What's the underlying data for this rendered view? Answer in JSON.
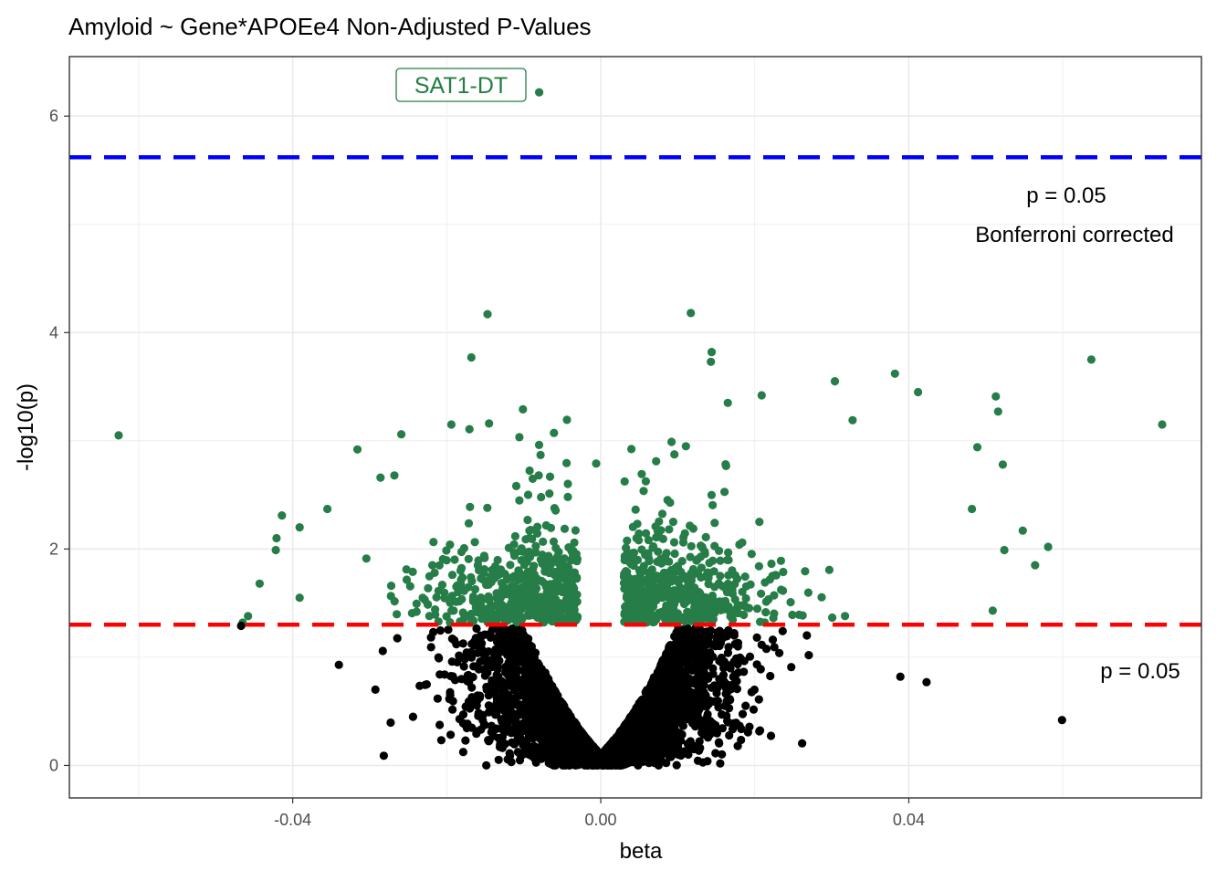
{
  "chart_data": {
    "type": "scatter",
    "title": "Amyloid ~ Gene*APOEe4 Non-Adjusted P-Values",
    "xlabel": "beta",
    "ylabel": "-log10(p)",
    "xlim": [
      -0.069,
      0.078
    ],
    "ylim": [
      -0.3,
      6.55
    ],
    "x_ticks": [
      -0.04,
      0.0,
      0.04
    ],
    "x_tick_labels": [
      "-0.04",
      "0.00",
      "0.04"
    ],
    "y_ticks": [
      0,
      2,
      4,
      6
    ],
    "y_tick_labels": [
      "0",
      "2",
      "4",
      "6"
    ],
    "grid": true,
    "colors": {
      "significant": "#267d47",
      "not_significant": "#000000",
      "bonferroni_line": "#0000ff",
      "nominal_line": "#ff0000",
      "label": "#267d47"
    },
    "thresholds": [
      {
        "name": "bonferroni",
        "y": 5.62,
        "color": "#0000ff",
        "annotation": [
          "p = 0.05",
          "Bonferroni corrected"
        ]
      },
      {
        "name": "nominal",
        "y": 1.301,
        "color": "#ff0000",
        "annotation": [
          "p = 0.05"
        ]
      }
    ],
    "labeled_points": [
      {
        "label": "SAT1-DT",
        "x": -0.008,
        "y": 6.22
      }
    ],
    "notable_points": [
      {
        "x": -0.008,
        "y": 6.22,
        "group": "significant"
      },
      {
        "x": -0.0626,
        "y": 3.05,
        "group": "significant"
      },
      {
        "x": -0.0147,
        "y": 4.17,
        "group": "significant"
      },
      {
        "x": 0.0117,
        "y": 4.18,
        "group": "significant"
      },
      {
        "x": -0.0168,
        "y": 3.77,
        "group": "significant"
      },
      {
        "x": 0.0144,
        "y": 3.82,
        "group": "significant"
      },
      {
        "x": 0.0143,
        "y": 3.73,
        "group": "significant"
      },
      {
        "x": 0.0637,
        "y": 3.75,
        "group": "significant"
      },
      {
        "x": 0.0729,
        "y": 3.15,
        "group": "significant"
      },
      {
        "x": 0.0382,
        "y": 3.62,
        "group": "significant"
      },
      {
        "x": 0.0304,
        "y": 3.55,
        "group": "significant"
      },
      {
        "x": 0.0412,
        "y": 3.45,
        "group": "significant"
      },
      {
        "x": 0.0513,
        "y": 3.41,
        "group": "significant"
      },
      {
        "x": 0.0516,
        "y": 3.27,
        "group": "significant"
      },
      {
        "x": -0.0101,
        "y": 3.29,
        "group": "significant"
      },
      {
        "x": -0.0194,
        "y": 3.15,
        "group": "significant"
      },
      {
        "x": -0.0145,
        "y": 3.16,
        "group": "significant"
      },
      {
        "x": -0.0259,
        "y": 3.06,
        "group": "significant"
      },
      {
        "x": -0.0316,
        "y": 2.92,
        "group": "significant"
      },
      {
        "x": 0.0092,
        "y": 2.99,
        "group": "significant"
      },
      {
        "x": 0.0209,
        "y": 3.42,
        "group": "significant"
      },
      {
        "x": 0.0165,
        "y": 3.35,
        "group": "significant"
      },
      {
        "x": 0.0327,
        "y": 3.19,
        "group": "significant"
      },
      {
        "x": 0.0522,
        "y": 2.78,
        "group": "significant"
      },
      {
        "x": 0.0489,
        "y": 2.94,
        "group": "significant"
      },
      {
        "x": -0.0006,
        "y": 2.79,
        "group": "significant"
      },
      {
        "x": -0.0286,
        "y": 2.66,
        "group": "significant"
      },
      {
        "x": -0.0268,
        "y": 2.68,
        "group": "significant"
      },
      {
        "x": -0.0355,
        "y": 2.37,
        "group": "significant"
      },
      {
        "x": -0.0414,
        "y": 2.31,
        "group": "significant"
      },
      {
        "x": -0.0391,
        "y": 2.2,
        "group": "significant"
      },
      {
        "x": -0.0421,
        "y": 2.1,
        "group": "significant"
      },
      {
        "x": -0.0422,
        "y": 1.99,
        "group": "significant"
      },
      {
        "x": -0.0443,
        "y": 1.68,
        "group": "significant"
      },
      {
        "x": -0.0391,
        "y": 1.55,
        "group": "significant"
      },
      {
        "x": -0.0458,
        "y": 1.38,
        "group": "significant"
      },
      {
        "x": -0.0465,
        "y": 1.32,
        "group": "significant"
      },
      {
        "x": 0.0581,
        "y": 2.02,
        "group": "significant"
      },
      {
        "x": 0.0548,
        "y": 2.17,
        "group": "significant"
      },
      {
        "x": 0.0564,
        "y": 1.85,
        "group": "significant"
      },
      {
        "x": 0.0509,
        "y": 1.43,
        "group": "significant"
      },
      {
        "x": 0.0482,
        "y": 2.37,
        "group": "significant"
      },
      {
        "x": 0.0524,
        "y": 1.99,
        "group": "significant"
      },
      {
        "x": -0.0467,
        "y": 1.29,
        "group": "not_significant"
      },
      {
        "x": 0.0599,
        "y": 0.42,
        "group": "not_significant"
      },
      {
        "x": 0.0423,
        "y": 0.77,
        "group": "not_significant"
      },
      {
        "x": 0.0389,
        "y": 0.82,
        "group": "not_significant"
      },
      {
        "x": -0.034,
        "y": 0.93,
        "group": "not_significant"
      }
    ],
    "groups": [
      {
        "name": "significant",
        "color": "#267d47"
      },
      {
        "name": "not_significant",
        "color": "#000000"
      }
    ]
  }
}
